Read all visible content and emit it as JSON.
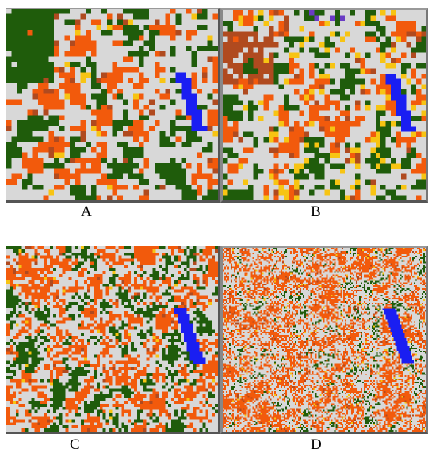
{
  "panels": [
    {
      "id": "a",
      "label": "A",
      "grid": [
        40,
        36
      ],
      "seed": 11,
      "weights": {
        "forest": 0.3,
        "urban": 0.45,
        "bare": 0.18,
        "brown": 0.05,
        "yellow": 0.02
      },
      "purple": false
    },
    {
      "id": "b",
      "label": "B",
      "grid": [
        40,
        36
      ],
      "seed": 23,
      "weights": {
        "forest": 0.25,
        "urban": 0.45,
        "bare": 0.14,
        "brown": 0.08,
        "yellow": 0.08
      },
      "purple": true
    },
    {
      "id": "c",
      "label": "C",
      "grid": [
        68,
        60
      ],
      "seed": 37,
      "weights": {
        "forest": 0.28,
        "urban": 0.32,
        "bare": 0.36,
        "brown": 0.03,
        "yellow": 0.01
      },
      "purple": false
    },
    {
      "id": "d",
      "label": "D",
      "grid": [
        130,
        118
      ],
      "seed": 41,
      "weights": {
        "forest": 0.22,
        "urban": 0.35,
        "bare": 0.36,
        "brown": 0.05,
        "yellow": 0.02
      },
      "purple": false
    }
  ],
  "colors": {
    "forest": "#1f5c0b",
    "urban": "#d8d8d8",
    "bare": "#f25a0c",
    "brown": "#b04a1f",
    "yellow": "#f7c413",
    "water": "#1a1ef2",
    "purple": "#6a3cc4"
  }
}
